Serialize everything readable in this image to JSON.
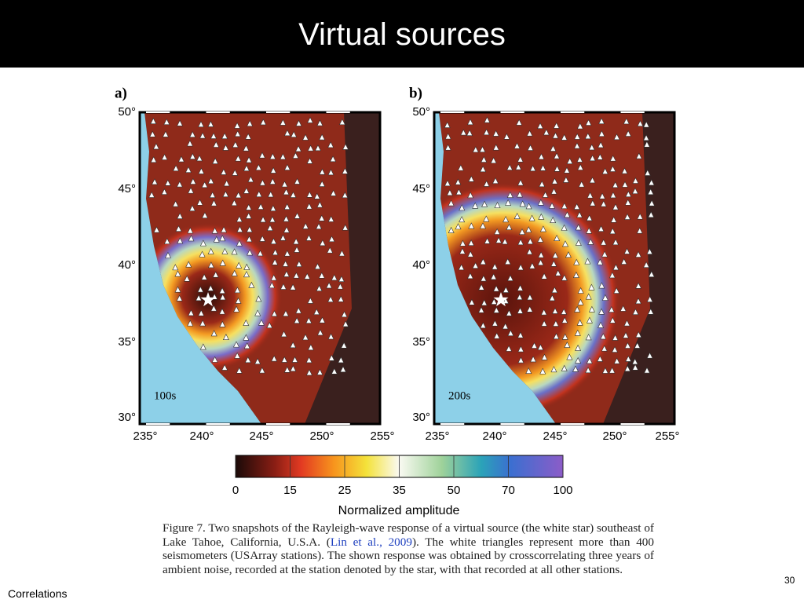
{
  "header": {
    "title": "Virtual sources"
  },
  "figure": {
    "panels": [
      {
        "label": "a)",
        "period": "100s"
      },
      {
        "label": "b)",
        "period": "200s"
      }
    ],
    "lat_labels": [
      "50°",
      "45°",
      "40°",
      "35°",
      "30°"
    ],
    "lon_labels": [
      "235°",
      "240°",
      "245°",
      "250°",
      "255°"
    ],
    "colorbar": {
      "ticks": [
        0,
        15,
        25,
        35,
        50,
        70,
        100
      ],
      "label": "Normalized amplitude"
    },
    "caption": {
      "before": "Figure 7. Two snapshots of the Rayleigh-wave response of a virtual source (the white star) southeast of Lake Tahoe, California, U.S.A. (",
      "link": "Lin et al., 2009",
      "after": "). The white triangles represent more than 400 seismometers (USArray stations). The shown response was obtained by crosscorrelating three years of ambient noise, recorded at the station denoted by the star, with that recorded at all other stations."
    }
  },
  "footer": {
    "left": "Correlations",
    "page_number": "30"
  }
}
